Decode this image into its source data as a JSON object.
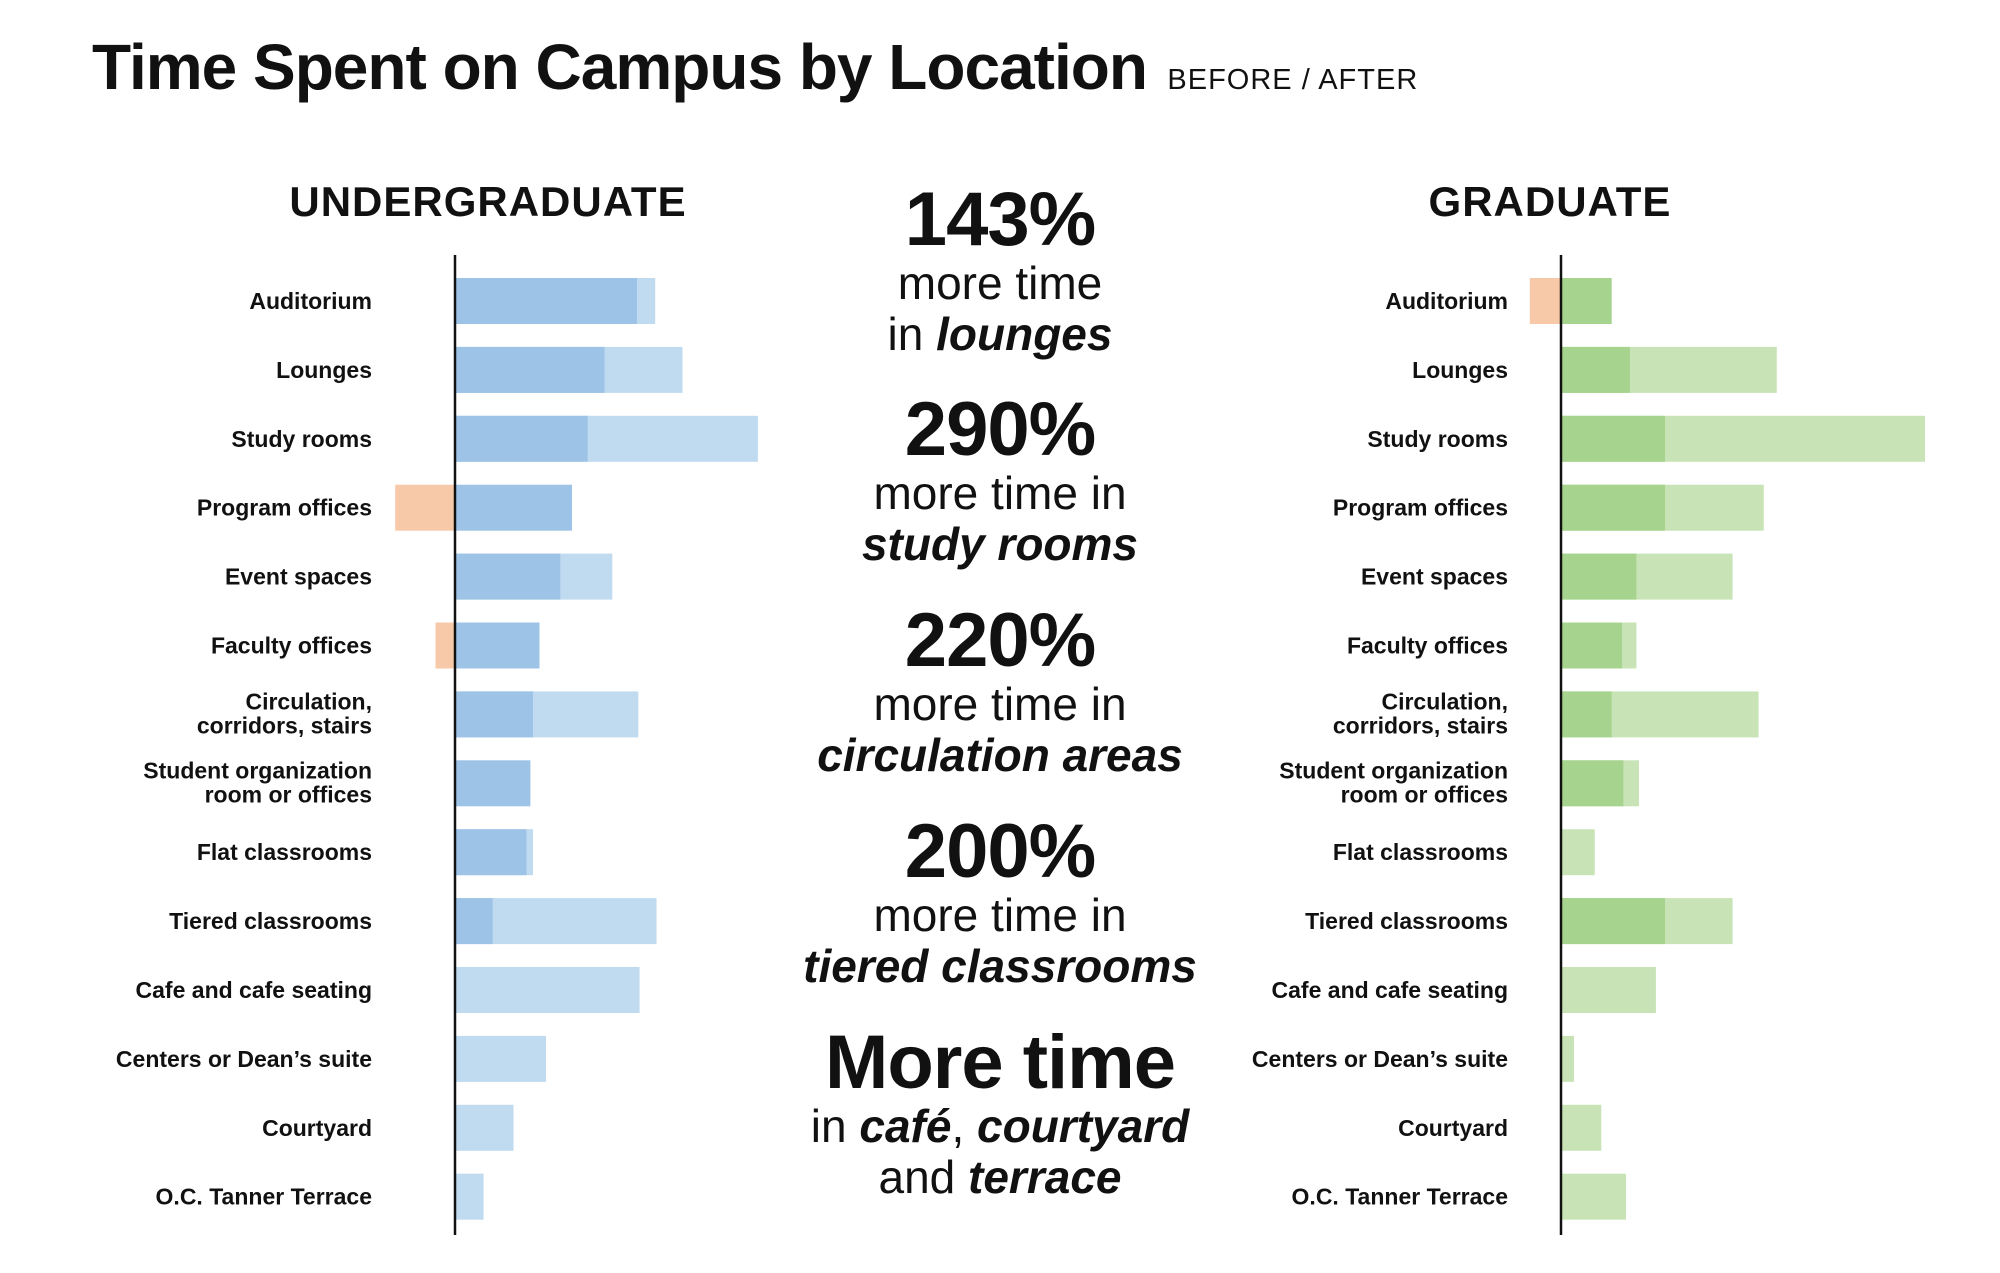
{
  "header": {
    "title": "Time Spent on Campus by Location",
    "subtitle": "BEFORE / AFTER"
  },
  "panels": {
    "left_title": "UNDERGRADUATE",
    "right_title": "GRADUATE"
  },
  "colors": {
    "undergrad_before": "#9dc3e6",
    "undergrad_after": "#c0daf0",
    "grad_before": "#a6d48e",
    "grad_after": "#c8e4b6",
    "decrease": "#f7c9a9"
  },
  "stats": [
    {
      "number": "143%",
      "line": "more time",
      "prefix": "in ",
      "emphasis": "lounges"
    },
    {
      "number": "290%",
      "line": "more time in",
      "prefix": "",
      "emphasis": "study rooms"
    },
    {
      "number": "220%",
      "line": "more time in",
      "prefix": "",
      "emphasis": "circulation areas"
    },
    {
      "number": "200%",
      "line": "more time in",
      "prefix": "",
      "emphasis": "tiered classrooms"
    }
  ],
  "final_stat": {
    "headline": "More time",
    "line1_prefix": "in ",
    "line1_emphasis": "café",
    "line1_comma": ", ",
    "line1_emphasis2": "courtyard",
    "line2_prefix": "and ",
    "line2_emphasis": "terrace"
  },
  "chart_data": {
    "type": "bar",
    "orientation": "horizontal",
    "title": "Time Spent on Campus by Location",
    "subtitle": "BEFORE / AFTER",
    "categories": [
      [
        "Auditorium"
      ],
      [
        "Lounges"
      ],
      [
        "Study rooms"
      ],
      [
        "Program offices"
      ],
      [
        "Event spaces"
      ],
      [
        "Faculty offices"
      ],
      [
        "Circulation,",
        "corridors, stairs"
      ],
      [
        "Student organization",
        "room or offices"
      ],
      [
        "Flat classrooms"
      ],
      [
        "Tiered classrooms"
      ],
      [
        "Cafe and cafe seating"
      ],
      [
        "Centers or Dean’s suite"
      ],
      [
        "Courtyard"
      ],
      [
        "O.C. Tanner Terrace"
      ]
    ],
    "groups": [
      {
        "name": "UNDERGRADUATE",
        "before": [
          140,
          115,
          102,
          90,
          81,
          65,
          60,
          58,
          55,
          29,
          0,
          0,
          0,
          0
        ],
        "after": [
          154,
          175,
          233,
          0,
          121,
          0,
          141,
          0,
          60,
          155,
          142,
          70,
          45,
          22
        ],
        "decrease": [
          0,
          0,
          0,
          46,
          0,
          15,
          0,
          0,
          0,
          0,
          0,
          0,
          0,
          0
        ]
      },
      {
        "name": "GRADUATE",
        "before": [
          39,
          53,
          80,
          80,
          58,
          47,
          39,
          48,
          0,
          80,
          0,
          0,
          0,
          0
        ],
        "after": [
          0,
          166,
          280,
          156,
          132,
          58,
          152,
          60,
          26,
          132,
          73,
          10,
          31,
          50
        ],
        "decrease": [
          24,
          0,
          0,
          0,
          0,
          0,
          0,
          0,
          0,
          0,
          0,
          0,
          0,
          0
        ]
      }
    ]
  }
}
